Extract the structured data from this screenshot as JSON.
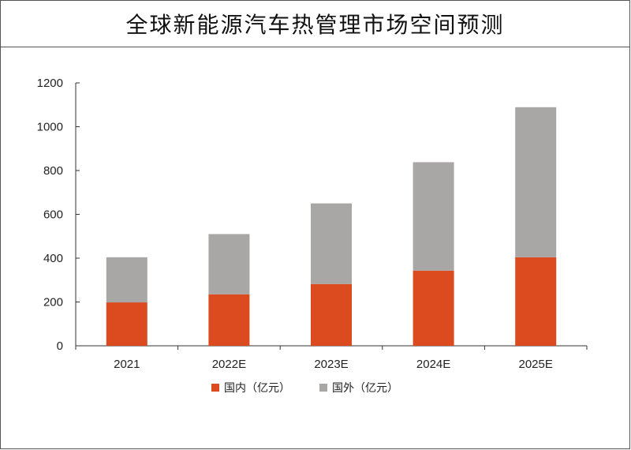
{
  "title": "全球新能源汽车热管理市场空间预测",
  "colors": {
    "domestic": "#DC4A1F",
    "overseas": "#A9A6A6",
    "axis": "#333333"
  },
  "chart_data": {
    "type": "bar",
    "stacked": true,
    "title": "全球新能源汽车热管理市场空间预测",
    "xlabel": "",
    "ylabel": "",
    "categories": [
      "2021",
      "2022E",
      "2023E",
      "2024E",
      "2025E"
    ],
    "ylim": [
      0,
      1200
    ],
    "yticks": [
      0,
      200,
      400,
      600,
      800,
      1000,
      1200
    ],
    "grid": false,
    "legend_position": "bottom",
    "series": [
      {
        "name": "国内（亿元）",
        "color": "#DC4A1F",
        "values": [
          198,
          235,
          282,
          343,
          404
        ]
      },
      {
        "name": "国外（亿元）",
        "color": "#A9A6A6",
        "values": [
          206,
          275,
          368,
          495,
          685
        ]
      }
    ]
  }
}
